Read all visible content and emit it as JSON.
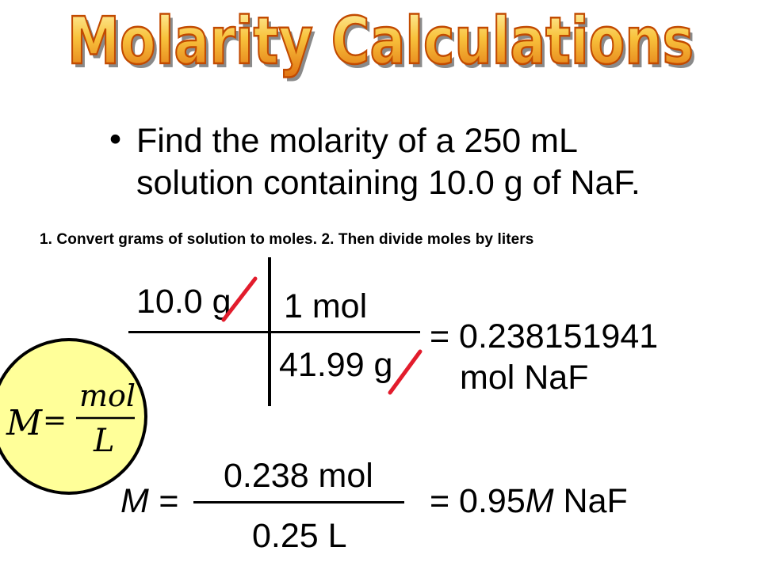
{
  "slide": {
    "title": "Molarity Calculations",
    "bullet": "Find the molarity of a 250 mL solution containing 10.0 g of NaF.",
    "bullet_line1": "Find the molarity of a 250 mL",
    "bullet_line2": "solution containing 10.0 g of NaF.",
    "steps": "1. Convert grams of solution to moles.  2. Then divide moles by liters",
    "conversion": {
      "given": "10.0 g",
      "factor_top": "1 mol",
      "factor_bottom": "41.99 g",
      "result_line1": "= 0.238151941",
      "result_line2": "mol NaF"
    },
    "formula": {
      "lhs": "M",
      "equals": "=",
      "numerator": "mol",
      "denominator": "L"
    },
    "final": {
      "lhs": "M =",
      "numerator": "0.238 mol",
      "denominator": "0.25 L",
      "result_prefix": "= 0.95",
      "result_italic": "M",
      "result_suffix": " NaF"
    },
    "colors": {
      "title_fill_top": "#FFF2A0",
      "title_fill_bottom": "#E07A10",
      "title_outline": "#C24A00",
      "circle_fill": "#FFFF99",
      "cancel_mark": "#E21C2C"
    }
  }
}
